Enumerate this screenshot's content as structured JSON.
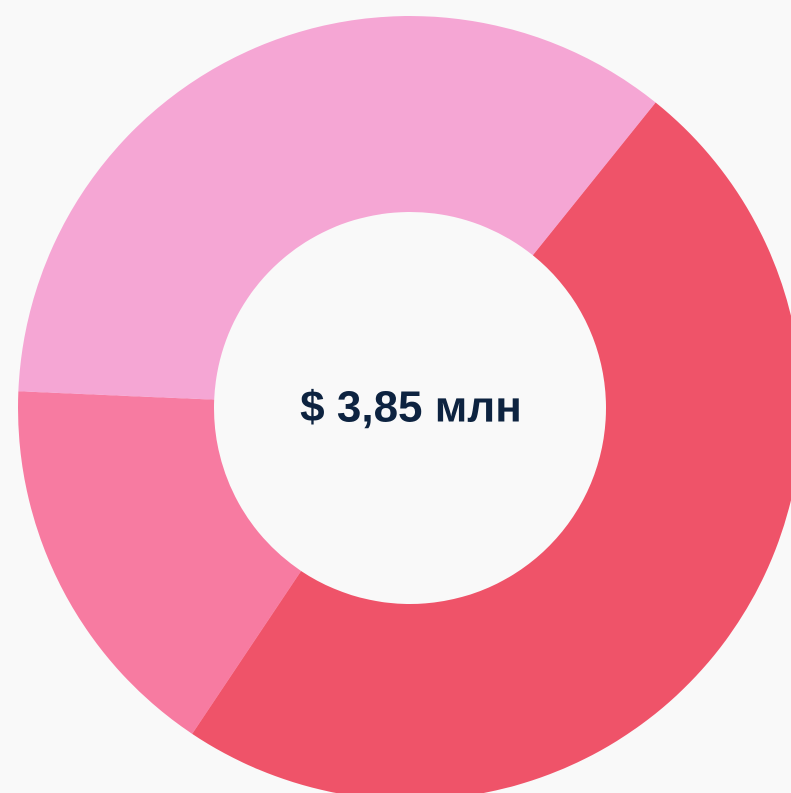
{
  "chart_data": {
    "type": "donut",
    "center_label": "$ 3,85 млн",
    "categories": [
      null,
      null,
      null
    ],
    "values": [
      48.6,
      16.3,
      35.1
    ],
    "colors": [
      "#ef5369",
      "#f77ba1",
      "#f5a6d4"
    ]
  }
}
